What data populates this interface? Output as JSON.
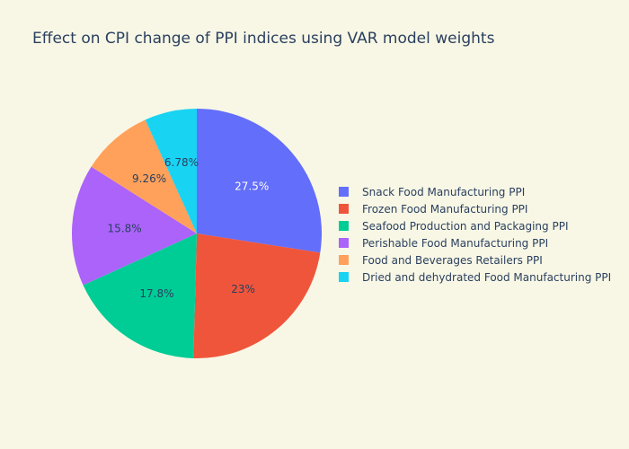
{
  "chart_data": {
    "type": "pie",
    "title": "Effect on CPI change of PPI indices using VAR model weights",
    "slices": [
      {
        "label": "Snack Food Manufacturing PPI",
        "value": 27.5,
        "display": "27.5%",
        "color": "#636efa",
        "text_color": "#ffffff"
      },
      {
        "label": "Frozen Food Manufacturing PPI",
        "value": 23.0,
        "display": "23%",
        "color": "#ef553b",
        "text_color": "#2a3f5f"
      },
      {
        "label": "Seafood Production and Packaging PPI",
        "value": 17.8,
        "display": "17.8%",
        "color": "#00cc96",
        "text_color": "#2a3f5f"
      },
      {
        "label": "Perishable Food Manufacturing PPI",
        "value": 15.8,
        "display": "15.8%",
        "color": "#ab63fa",
        "text_color": "#2a3f5f"
      },
      {
        "label": "Food and Beverages Retailers PPI",
        "value": 9.26,
        "display": "9.26%",
        "color": "#ffa15a",
        "text_color": "#2a3f5f"
      },
      {
        "label": "Dried and dehydrated Food Manufacturing PPI",
        "value": 6.78,
        "display": "6.78%",
        "color": "#19d3f3",
        "text_color": "#2a3f5f"
      }
    ],
    "legend_position": "right"
  }
}
